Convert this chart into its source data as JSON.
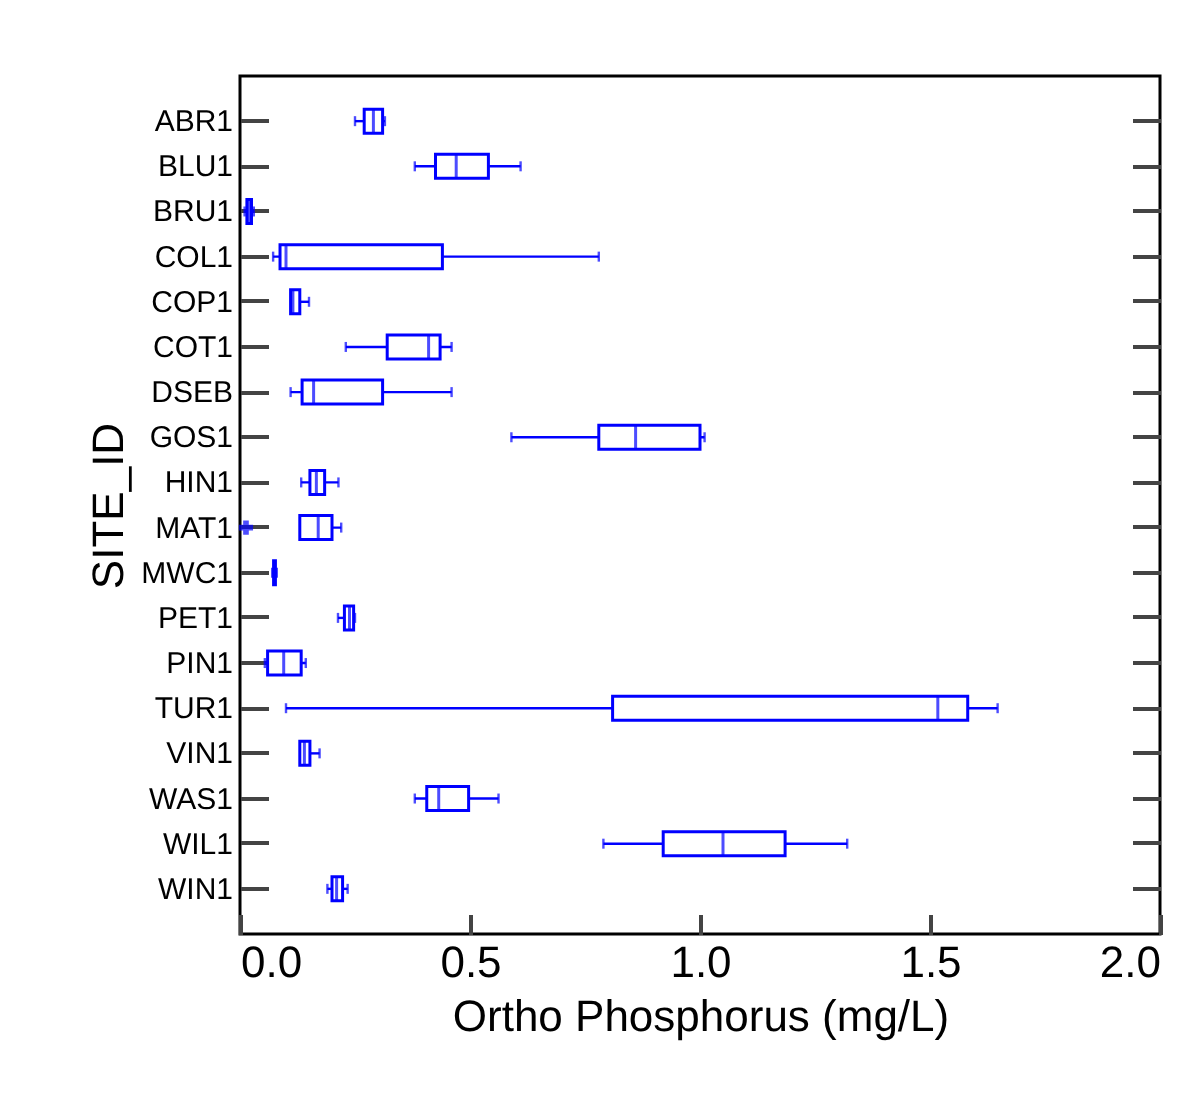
{
  "chart_data": {
    "type": "box",
    "orientation": "horizontal",
    "xlabel": "Ortho Phosphorus (mg/L)",
    "ylabel": "SITE_ID",
    "color": "#0000ff",
    "categories": [
      "ABR1",
      "BLU1",
      "BRU1",
      "COL1",
      "COP1",
      "COT1",
      "DSEB",
      "GOS1",
      "HIN1",
      "MAT1",
      "MWC1",
      "PET1",
      "PIN1",
      "TUR1",
      "VIN1",
      "WAS1",
      "WIL1",
      "WIN1"
    ],
    "boxes": [
      {
        "low": 0.25,
        "q1": 0.27,
        "median": 0.29,
        "q3": 0.31,
        "high": 0.315
      },
      {
        "low": 0.38,
        "q1": 0.425,
        "median": 0.47,
        "q3": 0.54,
        "high": 0.61
      },
      {
        "low": 0.01,
        "q1": 0.015,
        "median": 0.02,
        "q3": 0.025,
        "high": 0.03
      },
      {
        "low": 0.072,
        "q1": 0.087,
        "median": 0.1,
        "q3": 0.44,
        "high": 0.78
      },
      {
        "low": 0.11,
        "q1": 0.11,
        "median": 0.115,
        "q3": 0.13,
        "high": 0.15
      },
      {
        "low": 0.23,
        "q1": 0.32,
        "median": 0.41,
        "q3": 0.435,
        "high": 0.46
      },
      {
        "low": 0.11,
        "q1": 0.135,
        "median": 0.16,
        "q3": 0.31,
        "high": 0.46
      },
      {
        "low": 0.59,
        "q1": 0.78,
        "median": 0.86,
        "q3": 1.0,
        "high": 1.01
      },
      {
        "low": 0.133,
        "q1": 0.152,
        "median": 0.166,
        "q3": 0.184,
        "high": 0.214
      },
      {
        "low": 0.13,
        "q1": 0.13,
        "median": 0.17,
        "q3": 0.2,
        "high": 0.22,
        "outliers": [
          0.013
        ]
      },
      {
        "low": 0.07,
        "q1": 0.073,
        "median": 0.075,
        "q3": 0.077,
        "high": 0.08
      },
      {
        "low": 0.213,
        "q1": 0.227,
        "median": 0.238,
        "q3": 0.247,
        "high": 0.25
      },
      {
        "low": 0.054,
        "q1": 0.06,
        "median": 0.095,
        "q3": 0.133,
        "high": 0.143
      },
      {
        "low": 0.1,
        "q1": 0.81,
        "median": 1.517,
        "q3": 1.582,
        "high": 1.647
      },
      {
        "low": 0.13,
        "q1": 0.13,
        "median": 0.14,
        "q3": 0.152,
        "high": 0.173
      },
      {
        "low": 0.38,
        "q1": 0.406,
        "median": 0.432,
        "q3": 0.497,
        "high": 0.562
      },
      {
        "low": 0.79,
        "q1": 0.92,
        "median": 1.05,
        "q3": 1.185,
        "high": 1.32
      },
      {
        "low": 0.19,
        "q1": 0.2,
        "median": 0.21,
        "q3": 0.223,
        "high": 0.234
      }
    ],
    "xlim": [
      0,
      2
    ],
    "xticks": [
      {
        "value": 0,
        "label": "0.0"
      },
      0.5,
      {
        "value": 1,
        "label": "1.0"
      },
      1.5,
      {
        "value": 2,
        "label": "2.0"
      }
    ],
    "grid": false
  }
}
